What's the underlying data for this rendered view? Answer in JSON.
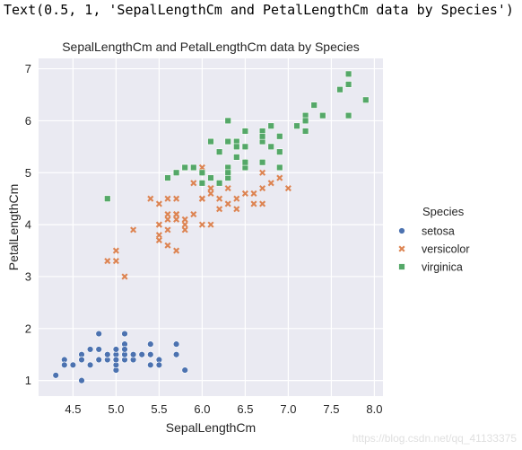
{
  "output_text": "Text(0.5, 1, 'SepalLengthCm and PetalLengthCm data by Species')",
  "watermark": "https://blog.csdn.net/qq_41133375",
  "colors": {
    "setosa": "#4c72b0",
    "versicolor": "#dd8452",
    "virginica": "#55a868",
    "plot_bg": "#eaeaf2",
    "grid": "#ffffff"
  },
  "chart_data": {
    "type": "scatter",
    "title": "SepalLengthCm and PetalLengthCm data by Species",
    "xlabel": "SepalLengthCm",
    "ylabel": "PetalLengthCm",
    "xlim": [
      4.1,
      8.1
    ],
    "ylim": [
      0.7,
      7.2
    ],
    "xticks": [
      "4.5",
      "5.0",
      "5.5",
      "6.0",
      "6.5",
      "7.0",
      "7.5",
      "8.0"
    ],
    "yticks": [
      "1",
      "2",
      "3",
      "4",
      "5",
      "6",
      "7"
    ],
    "grid": true,
    "legend": {
      "title": "Species",
      "placement": "right-outside"
    },
    "series": [
      {
        "name": "setosa",
        "marker": "circle",
        "points": [
          [
            5.1,
            1.4
          ],
          [
            4.9,
            1.4
          ],
          [
            4.7,
            1.3
          ],
          [
            4.6,
            1.5
          ],
          [
            5.0,
            1.4
          ],
          [
            5.4,
            1.7
          ],
          [
            4.6,
            1.4
          ],
          [
            5.0,
            1.5
          ],
          [
            4.4,
            1.4
          ],
          [
            4.9,
            1.5
          ],
          [
            5.4,
            1.5
          ],
          [
            4.8,
            1.6
          ],
          [
            4.8,
            1.4
          ],
          [
            4.3,
            1.1
          ],
          [
            5.8,
            1.2
          ],
          [
            5.7,
            1.5
          ],
          [
            5.4,
            1.3
          ],
          [
            5.1,
            1.4
          ],
          [
            5.7,
            1.7
          ],
          [
            5.1,
            1.5
          ],
          [
            5.4,
            1.7
          ],
          [
            5.1,
            1.5
          ],
          [
            4.6,
            1.0
          ],
          [
            5.1,
            1.7
          ],
          [
            4.8,
            1.9
          ],
          [
            5.0,
            1.6
          ],
          [
            5.0,
            1.6
          ],
          [
            5.2,
            1.5
          ],
          [
            5.2,
            1.4
          ],
          [
            4.7,
            1.6
          ],
          [
            4.8,
            1.6
          ],
          [
            5.4,
            1.5
          ],
          [
            5.2,
            1.5
          ],
          [
            5.5,
            1.4
          ],
          [
            4.9,
            1.5
          ],
          [
            5.0,
            1.2
          ],
          [
            5.5,
            1.3
          ],
          [
            4.9,
            1.5
          ],
          [
            4.4,
            1.3
          ],
          [
            5.1,
            1.5
          ],
          [
            5.0,
            1.3
          ],
          [
            4.5,
            1.3
          ],
          [
            4.4,
            1.3
          ],
          [
            5.0,
            1.6
          ],
          [
            5.1,
            1.9
          ],
          [
            4.8,
            1.4
          ],
          [
            5.1,
            1.6
          ],
          [
            4.6,
            1.4
          ],
          [
            5.3,
            1.5
          ],
          [
            5.0,
            1.4
          ]
        ]
      },
      {
        "name": "versicolor",
        "marker": "x",
        "points": [
          [
            7.0,
            4.7
          ],
          [
            6.4,
            4.5
          ],
          [
            6.9,
            4.9
          ],
          [
            5.5,
            4.0
          ],
          [
            6.5,
            4.6
          ],
          [
            5.7,
            4.5
          ],
          [
            6.3,
            4.7
          ],
          [
            4.9,
            3.3
          ],
          [
            6.6,
            4.6
          ],
          [
            5.2,
            3.9
          ],
          [
            5.0,
            3.5
          ],
          [
            5.9,
            4.2
          ],
          [
            6.0,
            4.0
          ],
          [
            6.1,
            4.7
          ],
          [
            5.6,
            3.6
          ],
          [
            6.7,
            4.4
          ],
          [
            5.6,
            4.5
          ],
          [
            5.8,
            4.1
          ],
          [
            6.2,
            4.5
          ],
          [
            5.6,
            3.9
          ],
          [
            5.9,
            4.8
          ],
          [
            6.1,
            4.0
          ],
          [
            6.3,
            4.9
          ],
          [
            6.1,
            4.7
          ],
          [
            6.4,
            4.3
          ],
          [
            6.6,
            4.4
          ],
          [
            6.8,
            4.8
          ],
          [
            6.7,
            5.0
          ],
          [
            6.0,
            4.5
          ],
          [
            5.7,
            3.5
          ],
          [
            5.5,
            3.8
          ],
          [
            5.5,
            3.7
          ],
          [
            5.8,
            3.9
          ],
          [
            6.0,
            5.1
          ],
          [
            5.4,
            4.5
          ],
          [
            6.0,
            4.5
          ],
          [
            6.7,
            4.7
          ],
          [
            6.3,
            4.4
          ],
          [
            5.6,
            4.1
          ],
          [
            5.5,
            4.0
          ],
          [
            5.5,
            4.4
          ],
          [
            6.1,
            4.6
          ],
          [
            5.8,
            4.0
          ],
          [
            5.0,
            3.3
          ],
          [
            5.6,
            4.2
          ],
          [
            5.7,
            4.2
          ],
          [
            5.7,
            4.2
          ],
          [
            6.2,
            4.3
          ],
          [
            5.1,
            3.0
          ],
          [
            5.7,
            4.1
          ]
        ]
      },
      {
        "name": "virginica",
        "marker": "square",
        "points": [
          [
            6.3,
            6.0
          ],
          [
            5.8,
            5.1
          ],
          [
            7.1,
            5.9
          ],
          [
            6.3,
            5.6
          ],
          [
            6.5,
            5.8
          ],
          [
            7.6,
            6.6
          ],
          [
            4.9,
            4.5
          ],
          [
            7.3,
            6.3
          ],
          [
            6.7,
            5.8
          ],
          [
            7.2,
            6.1
          ],
          [
            6.5,
            5.1
          ],
          [
            6.4,
            5.3
          ],
          [
            6.8,
            5.5
          ],
          [
            5.7,
            5.0
          ],
          [
            5.8,
            5.1
          ],
          [
            6.4,
            5.3
          ],
          [
            6.5,
            5.5
          ],
          [
            7.7,
            6.7
          ],
          [
            7.7,
            6.9
          ],
          [
            6.0,
            5.0
          ],
          [
            6.9,
            5.7
          ],
          [
            5.6,
            4.9
          ],
          [
            7.7,
            6.7
          ],
          [
            6.3,
            4.9
          ],
          [
            6.7,
            5.7
          ],
          [
            7.2,
            6.0
          ],
          [
            6.2,
            4.8
          ],
          [
            6.1,
            4.9
          ],
          [
            6.4,
            5.6
          ],
          [
            7.2,
            5.8
          ],
          [
            7.4,
            6.1
          ],
          [
            7.9,
            6.4
          ],
          [
            6.4,
            5.6
          ],
          [
            6.3,
            5.1
          ],
          [
            6.1,
            5.6
          ],
          [
            7.7,
            6.1
          ],
          [
            6.3,
            5.6
          ],
          [
            6.4,
            5.5
          ],
          [
            6.0,
            4.8
          ],
          [
            6.9,
            5.4
          ],
          [
            6.7,
            5.6
          ],
          [
            6.9,
            5.1
          ],
          [
            5.8,
            5.1
          ],
          [
            6.8,
            5.9
          ],
          [
            6.7,
            5.7
          ],
          [
            6.7,
            5.2
          ],
          [
            6.3,
            5.0
          ],
          [
            6.5,
            5.2
          ],
          [
            6.2,
            5.4
          ],
          [
            5.9,
            5.1
          ]
        ]
      }
    ]
  }
}
